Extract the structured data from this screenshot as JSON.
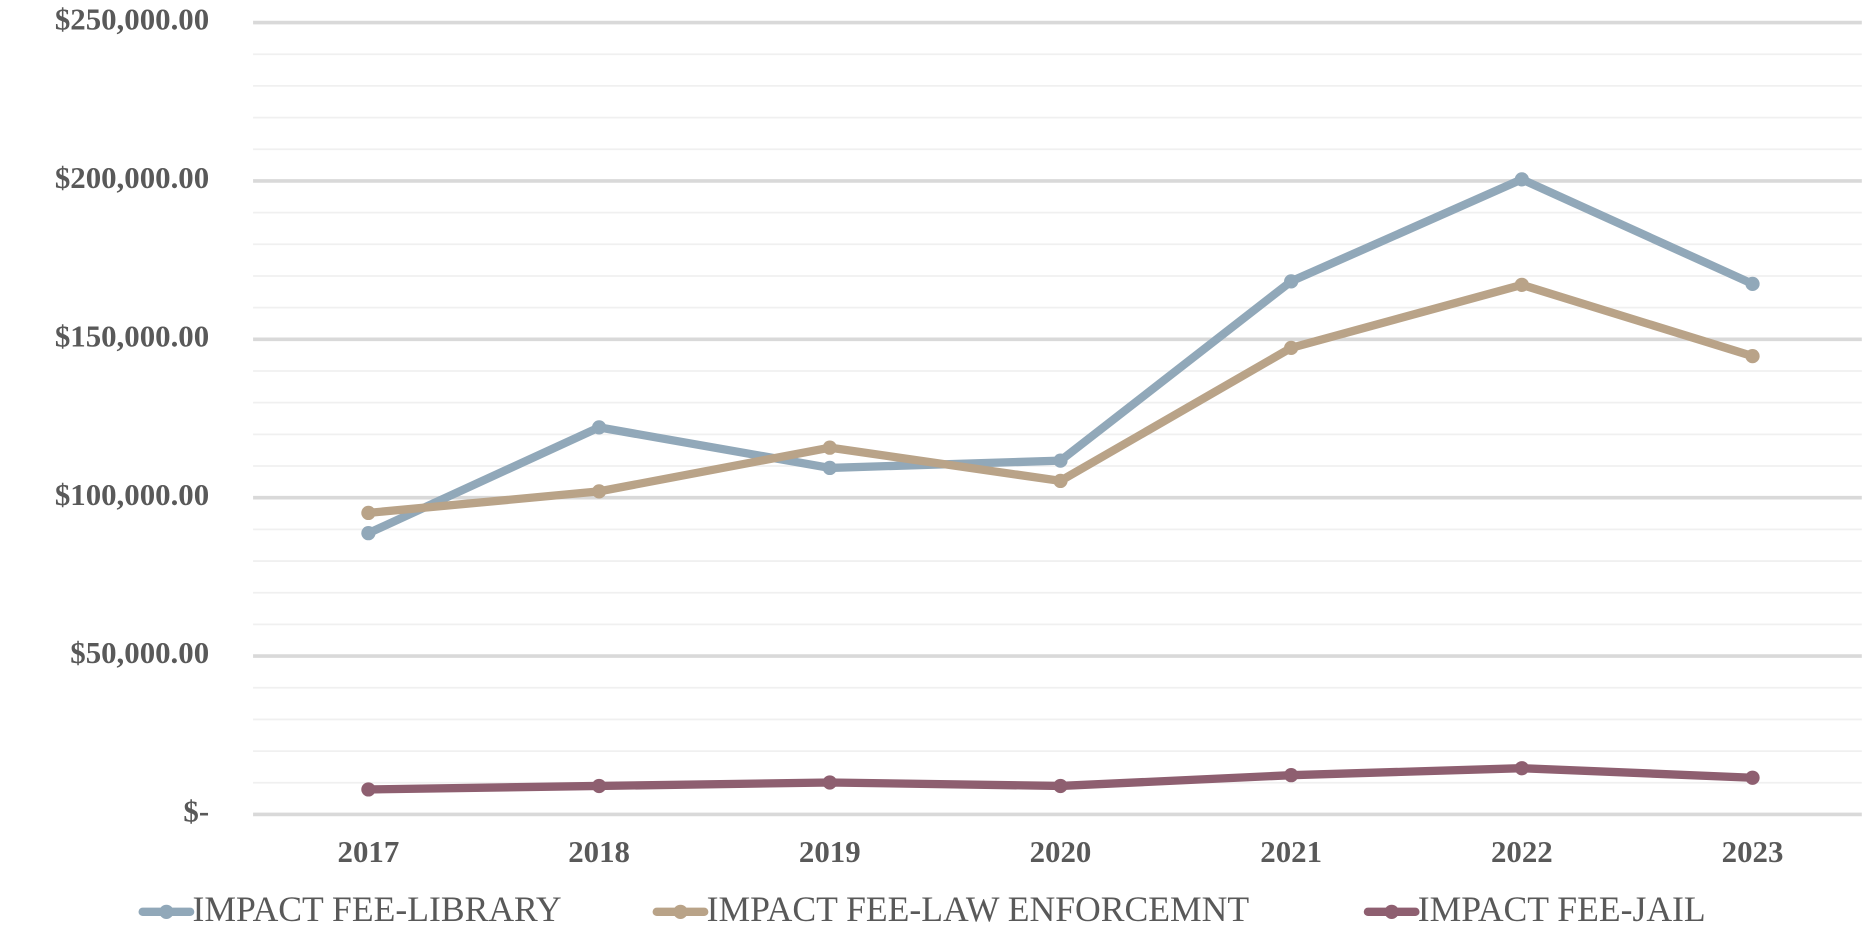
{
  "chart_data": {
    "type": "line",
    "categories": [
      "2017",
      "2018",
      "2019",
      "2020",
      "2021",
      "2022",
      "2023"
    ],
    "series": [
      {
        "name": "IMPACT FEE-LIBRARY",
        "color": "#91a8b9",
        "values": [
          88800,
          122200,
          109400,
          111700,
          168300,
          200500,
          167500
        ]
      },
      {
        "name": "IMPACT FEE-LAW ENFORCEMNT",
        "color": "#b9a388",
        "values": [
          95200,
          102000,
          115800,
          105300,
          147300,
          167200,
          144700
        ]
      },
      {
        "name": "IMPACT FEE-JAIL",
        "color": "#8e5f70",
        "values": [
          7900,
          9000,
          10100,
          9000,
          12400,
          14600,
          11600
        ]
      }
    ],
    "ylim": [
      0,
      250000
    ],
    "yticks": [
      {
        "value": 0,
        "label": "$-"
      },
      {
        "value": 50000,
        "label": "$50,000.00"
      },
      {
        "value": 100000,
        "label": "$100,000.00"
      },
      {
        "value": 150000,
        "label": "$150,000.00"
      },
      {
        "value": 200000,
        "label": "$200,000.00"
      },
      {
        "value": 250000,
        "label": "$250,000.00"
      }
    ],
    "minor_yticks": [
      10000,
      20000,
      30000,
      40000,
      60000,
      70000,
      80000,
      90000,
      110000,
      120000,
      130000,
      140000,
      160000,
      170000,
      180000,
      190000,
      210000,
      220000,
      230000,
      240000
    ],
    "grid": true,
    "legend": "bottom"
  }
}
